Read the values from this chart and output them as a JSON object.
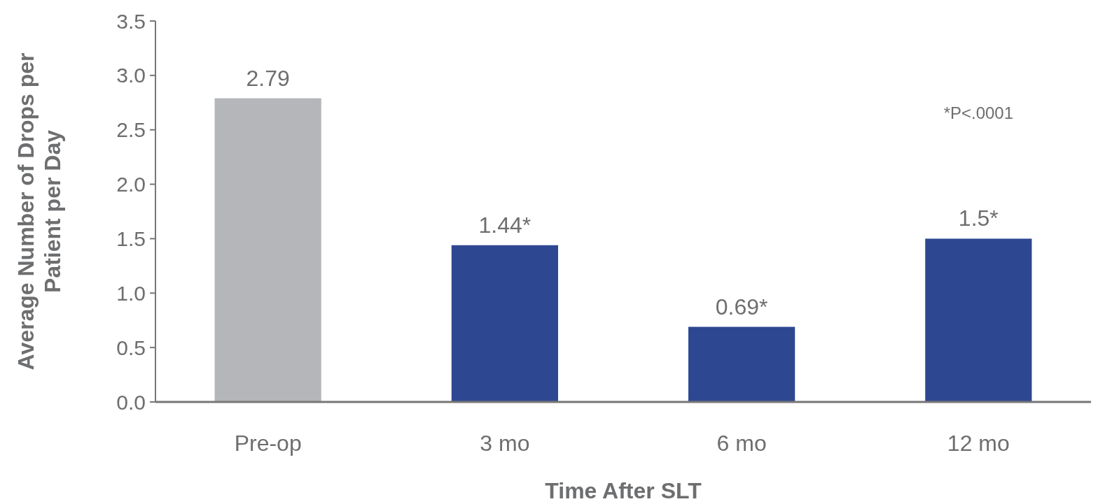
{
  "chart_data": {
    "type": "bar",
    "ylabel": "Average Number of Drops per Patient per Day",
    "xlabel": "Time After SLT",
    "categories": [
      "Pre-op",
      "3 mo",
      "6 mo",
      "12 mo"
    ],
    "values": [
      2.79,
      1.44,
      0.69,
      1.5
    ],
    "colors": [
      "#b4b6b9",
      "#2e4791",
      "#2e4791",
      "#2e4791"
    ],
    "value_labels": [
      "2.79",
      "1.44*",
      "0.69*",
      "1.5*"
    ],
    "annotations": [
      "*P<.0001"
    ],
    "ylim": [
      0,
      3.5
    ],
    "yticks": [
      {
        "value": 0,
        "label": "0.0"
      },
      {
        "value": 0.5,
        "label": "0.5"
      },
      {
        "value": 1,
        "label": "1.0"
      },
      {
        "value": 1.5,
        "label": "1.5"
      },
      {
        "value": 2,
        "label": "2.0"
      },
      {
        "value": 2.5,
        "label": "2.5"
      },
      {
        "value": 3,
        "label": "3.0"
      },
      {
        "value": 3.5,
        "label": "3.5"
      }
    ],
    "grid": false
  }
}
